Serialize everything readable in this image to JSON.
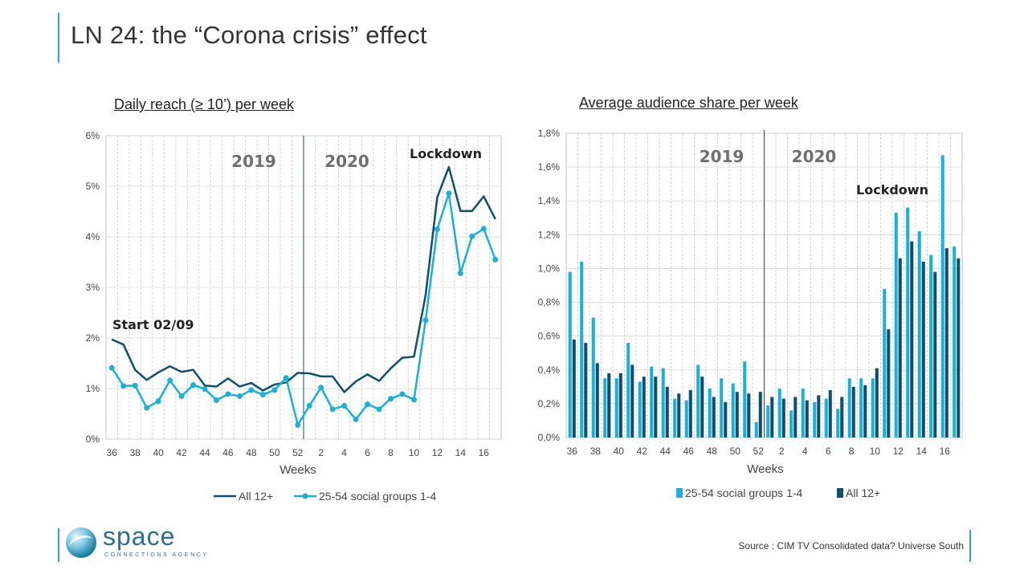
{
  "page_title": "LN 24: the “Corona crisis” effect",
  "source": "Source : CIM TV Consolidated data? Universe South",
  "logo": {
    "name": "space",
    "tagline": "CONNECTIONS AGENCY"
  },
  "colors": {
    "dark": "#0f4f6e",
    "light": "#1ab0d8",
    "accent": "#2aa6c6"
  },
  "chart_data": [
    {
      "type": "line",
      "title": "Daily reach (≥ 10’) per week",
      "xlabel": "Weeks",
      "ylabel": "",
      "ylim": [
        0,
        6
      ],
      "yticks": [
        "0%",
        "1%",
        "2%",
        "3%",
        "4%",
        "5%",
        "6%"
      ],
      "x_tick_labels": [
        "36",
        "38",
        "40",
        "42",
        "44",
        "46",
        "48",
        "50",
        "52",
        "2",
        "4",
        "6",
        "8",
        "10",
        "12",
        "14",
        "16"
      ],
      "weeks": [
        "36",
        "37",
        "38",
        "39",
        "40",
        "41",
        "42",
        "43",
        "44",
        "45",
        "46",
        "47",
        "48",
        "49",
        "50",
        "51",
        "52",
        "1",
        "2",
        "3",
        "4",
        "5",
        "6",
        "7",
        "8",
        "9",
        "10",
        "11",
        "12",
        "13",
        "14",
        "15",
        "16",
        "17"
      ],
      "series": [
        {
          "name": "All 12+",
          "color": "#0f4f6e",
          "values": [
            1.97,
            1.87,
            1.37,
            1.17,
            1.32,
            1.44,
            1.33,
            1.37,
            1.06,
            1.04,
            1.2,
            1.04,
            1.11,
            0.96,
            1.08,
            1.12,
            1.31,
            1.3,
            1.24,
            1.24,
            0.93,
            1.14,
            1.28,
            1.15,
            1.4,
            1.61,
            1.63,
            2.85,
            4.78,
            5.38,
            4.51,
            4.51,
            4.8,
            4.35
          ]
        },
        {
          "name": "25-54 social groups 1-4",
          "color": "#1ab0d8",
          "values": [
            1.41,
            1.05,
            1.06,
            0.62,
            0.75,
            1.16,
            0.85,
            1.07,
            0.99,
            0.77,
            0.89,
            0.85,
            0.97,
            0.88,
            0.97,
            1.21,
            0.28,
            0.66,
            1.02,
            0.59,
            0.66,
            0.39,
            0.69,
            0.59,
            0.8,
            0.89,
            0.78,
            2.35,
            4.15,
            4.86,
            3.28,
            4.01,
            4.16,
            3.55
          ]
        }
      ],
      "annotations": {
        "start": "Start 02/09",
        "lockdown": "Lockdown",
        "year1": "2019",
        "year2": "2020"
      },
      "legend": "bottom"
    },
    {
      "type": "bar",
      "title": "Average audience share per week",
      "xlabel": "Weeks",
      "ylabel": "",
      "ylim": [
        0,
        1.8
      ],
      "yticks": [
        "0,0%",
        "0,2%",
        "0,4%",
        "0,6%",
        "0,8%",
        "1,0%",
        "1,2%",
        "1,4%",
        "1,6%",
        "1,8%"
      ],
      "x_tick_labels": [
        "36",
        "38",
        "40",
        "42",
        "44",
        "46",
        "48",
        "50",
        "52",
        "2",
        "4",
        "6",
        "8",
        "10",
        "12",
        "14",
        "16"
      ],
      "weeks": [
        "36",
        "37",
        "38",
        "39",
        "40",
        "41",
        "42",
        "43",
        "44",
        "45",
        "46",
        "47",
        "48",
        "49",
        "50",
        "51",
        "52",
        "1",
        "2",
        "3",
        "4",
        "5",
        "6",
        "7",
        "8",
        "9",
        "10",
        "11",
        "12",
        "13",
        "14",
        "15",
        "16",
        "17"
      ],
      "series": [
        {
          "name": "25-54 social groups 1-4",
          "color": "#1ab0d8",
          "values": [
            0.98,
            1.04,
            0.71,
            0.35,
            0.35,
            0.56,
            0.33,
            0.42,
            0.41,
            0.23,
            0.22,
            0.43,
            0.29,
            0.35,
            0.32,
            0.45,
            0.09,
            0.19,
            0.29,
            0.16,
            0.29,
            0.21,
            0.23,
            0.17,
            0.35,
            0.35,
            0.35,
            0.88,
            1.33,
            1.36,
            1.22,
            1.08,
            1.67,
            1.13
          ]
        },
        {
          "name": "All 12+",
          "color": "#0f4f6e",
          "values": [
            0.58,
            0.56,
            0.44,
            0.38,
            0.38,
            0.43,
            0.36,
            0.36,
            0.3,
            0.26,
            0.28,
            0.36,
            0.24,
            0.21,
            0.27,
            0.26,
            0.27,
            0.24,
            0.23,
            0.24,
            0.22,
            0.25,
            0.28,
            0.24,
            0.3,
            0.31,
            0.41,
            0.64,
            1.06,
            1.16,
            1.04,
            0.98,
            1.12,
            1.06
          ]
        }
      ],
      "annotations": {
        "lockdown": "Lockdown",
        "year1": "2019",
        "year2": "2020"
      },
      "legend": "bottom"
    }
  ]
}
